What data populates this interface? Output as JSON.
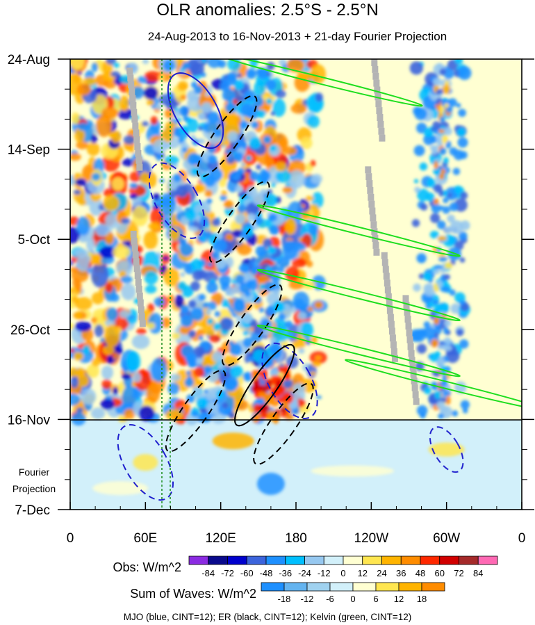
{
  "chart_data": {
    "type": "heatmap",
    "title": "OLR anomalies: 2.5°S - 2.5°N",
    "subtitle": "24-Aug-2013 to 16-Nov-2013 + 21-day Fourier Projection",
    "x_ticks": [
      "0",
      "60E",
      "120E",
      "180",
      "120W",
      "60W",
      "0"
    ],
    "y_ticks": [
      "24-Aug",
      "14-Sep",
      "5-Oct",
      "26-Oct",
      "16-Nov",
      "7-Dec"
    ],
    "projection_label": [
      "Fourier",
      "Projection"
    ],
    "obs_scale": {
      "label": "Obs: W/m^2",
      "levels": [
        "-84",
        "-72",
        "-60",
        "-48",
        "-36",
        "-24",
        "-12",
        "0",
        "12",
        "24",
        "36",
        "48",
        "60",
        "72",
        "84"
      ],
      "colors": [
        "#8b2be2",
        "#0a0a8c",
        "#0000cd",
        "#3c64dc",
        "#1e90ff",
        "#00bfff",
        "#96c8f0",
        "#d2f0fa",
        "#ffffd2",
        "#ffe650",
        "#ffb400",
        "#ff8c00",
        "#ff2800",
        "#d20000",
        "#a52a2a",
        "#ff69b4"
      ]
    },
    "waves_scale": {
      "label": "Sum of Waves: W/m^2",
      "levels": [
        "-18",
        "-12",
        "-6",
        "0",
        "6",
        "12",
        "18"
      ],
      "colors": [
        "#1e90ff",
        "#64b4f0",
        "#a0d2f0",
        "#d2f0fa",
        "#ffffd2",
        "#ffe650",
        "#ffb400",
        "#ff8c00"
      ]
    },
    "contour_note": "MJO (blue, CINT=12); ER (black, CINT=12); Kelvin (green, CINT=12)",
    "bands": [
      {
        "lon": 95,
        "kind": "convective"
      },
      {
        "lon": 140,
        "kind": "convective"
      },
      {
        "lon": 295,
        "kind": "convective"
      }
    ],
    "structures": [
      {
        "type": "mjo",
        "lon": 100,
        "day": 12,
        "sign": "neg"
      },
      {
        "type": "mjo",
        "lon": 85,
        "day": 33,
        "sign": "pos"
      },
      {
        "type": "mjo",
        "lon": 175,
        "day": 75,
        "sign": "pos"
      },
      {
        "type": "mjo",
        "lon": 300,
        "day": 91,
        "sign": "pos"
      },
      {
        "type": "mjo",
        "lon": 60,
        "day": 94,
        "sign": "pos"
      },
      {
        "type": "er",
        "lon": 125,
        "day": 18,
        "sign": "pos"
      },
      {
        "type": "er",
        "lon": 135,
        "day": 38,
        "sign": "pos"
      },
      {
        "type": "er",
        "lon": 145,
        "day": 62,
        "sign": "pos"
      },
      {
        "type": "er",
        "lon": 155,
        "day": 76,
        "sign": "neg"
      },
      {
        "type": "er",
        "lon": 100,
        "day": 82,
        "sign": "pos"
      },
      {
        "type": "er",
        "lon": 170,
        "day": 85,
        "sign": "pos"
      },
      {
        "type": "kelvin",
        "lon": 200,
        "day": 5,
        "sign": "neg"
      },
      {
        "type": "kelvin",
        "lon": 230,
        "day": 40,
        "sign": "neg"
      },
      {
        "type": "kelvin",
        "lon": 230,
        "day": 55,
        "sign": "neg"
      },
      {
        "type": "kelvin",
        "lon": 230,
        "day": 68,
        "sign": "neg"
      },
      {
        "type": "kelvin",
        "lon": 300,
        "day": 76,
        "sign": "neg"
      }
    ]
  }
}
